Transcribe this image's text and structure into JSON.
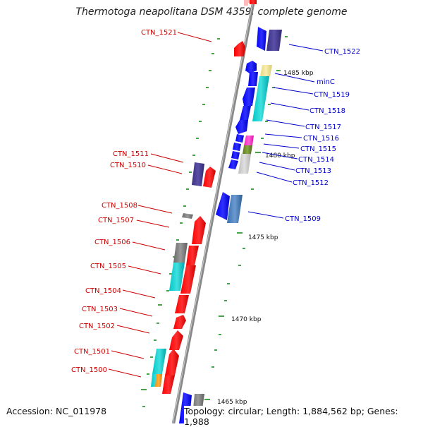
{
  "header": {
    "title": "Thermotoga neapolitana DSM 4359, complete genome"
  },
  "footer": {
    "accession": "Accession: NC_011978",
    "topology": "Topology: circular; Length: 1,884,562 bp; Genes: 1,988"
  },
  "ticks": [
    {
      "label": "1485 kbp"
    },
    {
      "label": "1480 kbp"
    },
    {
      "label": "1475 kbp"
    },
    {
      "label": "1470 kbp"
    },
    {
      "label": "1465 kbp"
    }
  ],
  "forward_genes": [
    {
      "name": "CTN_1522",
      "color": "#0000ff"
    },
    {
      "name": "minC",
      "color": "#f0e08c"
    },
    {
      "name": "CTN_1519",
      "color": "#00c8c8"
    },
    {
      "name": "CTN_1518",
      "color": "#0000ff"
    },
    {
      "name": "CTN_1517",
      "color": "#0000ff"
    },
    {
      "name": "CTN_1516",
      "color": "#ff33cc"
    },
    {
      "name": "CTN_1515",
      "color": "#6b8e23"
    },
    {
      "name": "CTN_1514",
      "color": "#0000ff"
    },
    {
      "name": "CTN_1513",
      "color": "#cccccc"
    },
    {
      "name": "CTN_1512",
      "color": "#0000ff"
    },
    {
      "name": "CTN_1509",
      "color": "#4682b4"
    }
  ],
  "reverse_genes": [
    {
      "name": "CTN_1521",
      "color": "#ff0000"
    },
    {
      "name": "CTN_1511",
      "color": "#483d8b"
    },
    {
      "name": "CTN_1510",
      "color": "#ff0000"
    },
    {
      "name": "CTN_1508",
      "color": "#808080"
    },
    {
      "name": "CTN_1507",
      "color": "#ff0000"
    },
    {
      "name": "CTN_1506",
      "color": "#808080"
    },
    {
      "name": "CTN_1505",
      "color": "#00c8c8"
    },
    {
      "name": "CTN_1504",
      "color": "#ff0000"
    },
    {
      "name": "CTN_1503",
      "color": "#ff0000"
    },
    {
      "name": "CTN_1502",
      "color": "#ff0000"
    },
    {
      "name": "CTN_1501",
      "color": "#00c8c8"
    },
    {
      "name": "CTN_1500",
      "color": "#ff8c00"
    }
  ],
  "colors": {
    "backbone": "#9a9a9a",
    "tick_mark": "#1a8a1a",
    "forward_label": "#0000cc",
    "reverse_label": "#cc0000"
  }
}
